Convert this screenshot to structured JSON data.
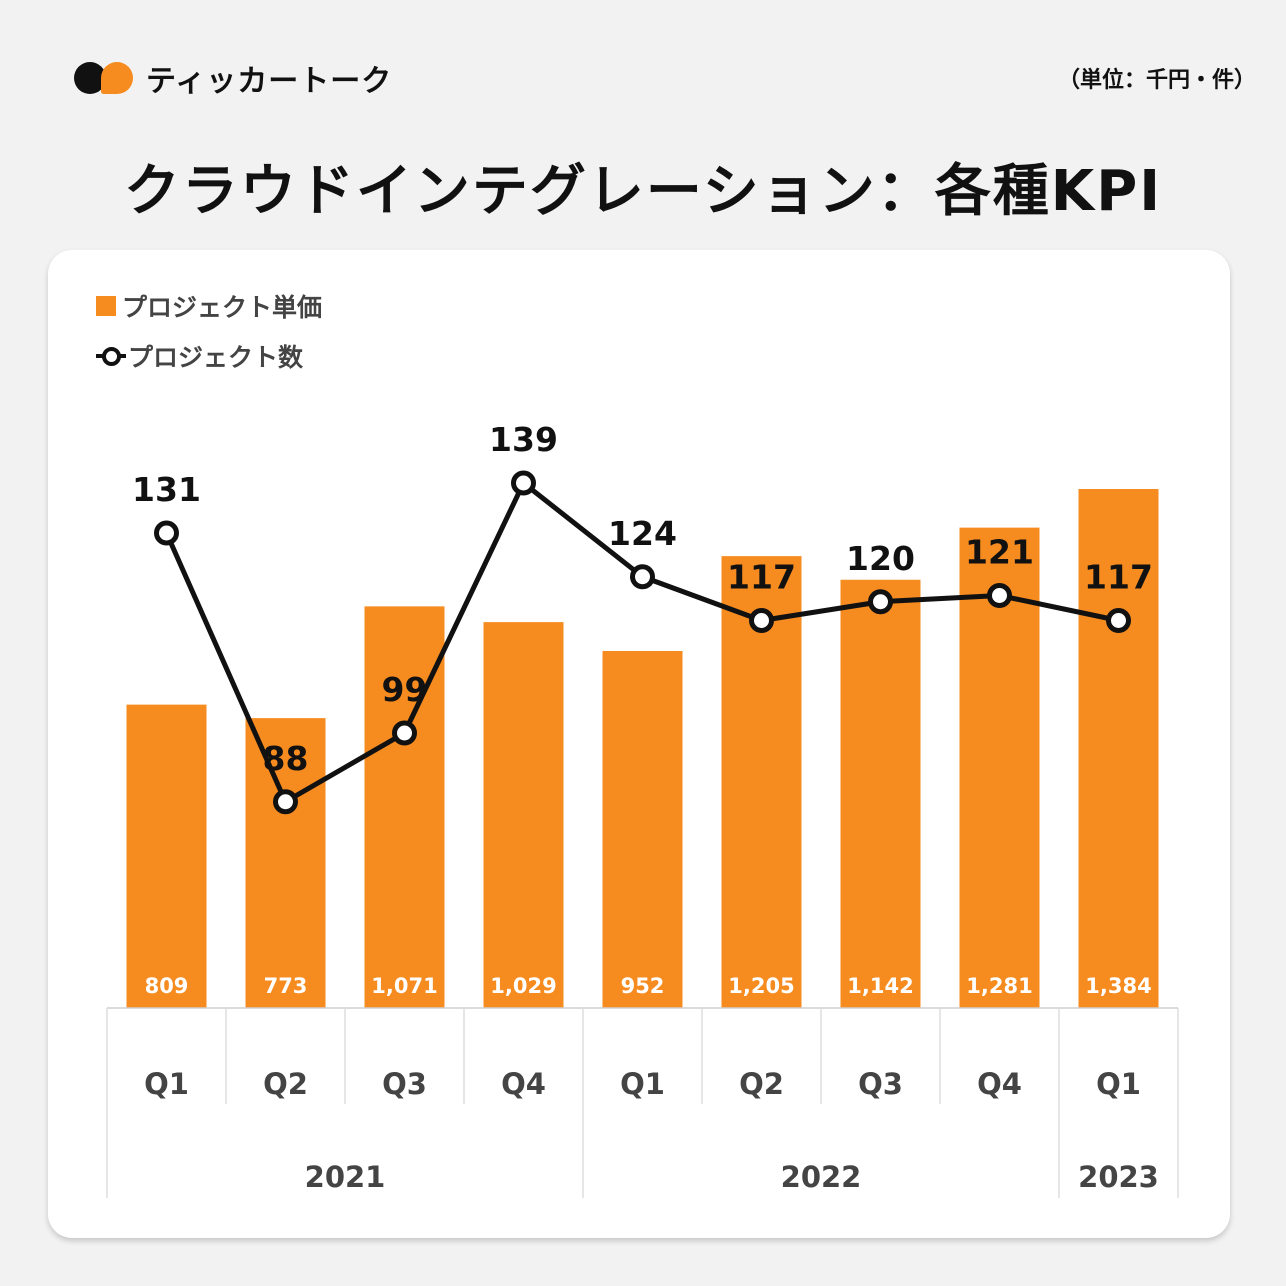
{
  "header": {
    "brand": "ティッカートーク",
    "unit_note": "（単位：千円・件）",
    "title": "クラウドインテグレーション：各種KPI"
  },
  "colors": {
    "bar": "#f68b1f",
    "line": "#111111",
    "background": "#f2f2f2"
  },
  "chart_data": {
    "type": "bar+line",
    "title": "クラウドインテグレーション：各種KPI",
    "categories": [
      "Q1",
      "Q2",
      "Q3",
      "Q4",
      "Q1",
      "Q2",
      "Q3",
      "Q4",
      "Q1"
    ],
    "groups": [
      {
        "label": "2021",
        "count": 4
      },
      {
        "label": "2022",
        "count": 4
      },
      {
        "label": "2023",
        "count": 1
      }
    ],
    "series": [
      {
        "name": "プロジェクト単価",
        "type": "bar",
        "values": [
          809,
          773,
          1071,
          1029,
          952,
          1205,
          1142,
          1281,
          1384
        ],
        "labels": [
          "809",
          "773",
          "1,071",
          "1,029",
          "952",
          "1,205",
          "1,142",
          "1,281",
          "1,384"
        ]
      },
      {
        "name": "プロジェクト数",
        "type": "line",
        "values": [
          131,
          88,
          99,
          139,
          124,
          117,
          120,
          121,
          117
        ],
        "labels": [
          "131",
          "88",
          "99",
          "139",
          "124",
          "117",
          "120",
          "121",
          "117"
        ]
      }
    ],
    "bar_ylim": [
      0,
      1600
    ],
    "line_ylim": [
      55,
      151
    ],
    "legend": "top-left",
    "grid": false
  }
}
